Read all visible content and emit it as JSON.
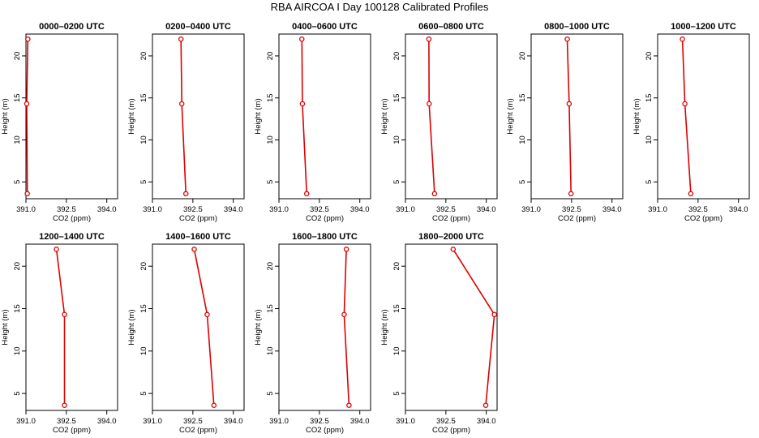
{
  "title": "RBA AIRCOA I  Day 100128  Calibrated Profiles",
  "colors": {
    "series": "#dd0000",
    "axis": "#000000",
    "background": "#ffffff"
  },
  "chart_data": [
    {
      "type": "line",
      "title": "0000–0200 UTC",
      "xlabel": "CO2 (ppm)",
      "ylabel": "Height (m)",
      "xlim": [
        391.0,
        394.4
      ],
      "ylim": [
        3.0,
        22.6
      ],
      "xticks": [
        "391.0",
        "392.5",
        "394.0"
      ],
      "yticks": [
        "5",
        "10",
        "15",
        "20"
      ],
      "x": [
        391.07,
        391.03,
        391.05
      ],
      "y": [
        22.0,
        14.3,
        3.6
      ]
    },
    {
      "type": "line",
      "title": "0200–0400 UTC",
      "xlabel": "CO2 (ppm)",
      "ylabel": "Height (m)",
      "xlim": [
        391.0,
        394.4
      ],
      "ylim": [
        3.0,
        22.6
      ],
      "xticks": [
        "391.0",
        "392.5",
        "394.0"
      ],
      "yticks": [
        "5",
        "10",
        "15",
        "20"
      ],
      "x": [
        392.06,
        392.09,
        392.24
      ],
      "y": [
        22.0,
        14.3,
        3.6
      ]
    },
    {
      "type": "line",
      "title": "0400–0600 UTC",
      "xlabel": "CO2 (ppm)",
      "ylabel": "Height (m)",
      "xlim": [
        391.0,
        394.4
      ],
      "ylim": [
        3.0,
        22.6
      ],
      "xticks": [
        "391.0",
        "392.5",
        "394.0"
      ],
      "yticks": [
        "5",
        "10",
        "15",
        "20"
      ],
      "x": [
        391.85,
        391.87,
        392.03
      ],
      "y": [
        22.0,
        14.3,
        3.6
      ]
    },
    {
      "type": "line",
      "title": "0600–0800 UTC",
      "xlabel": "CO2 (ppm)",
      "ylabel": "Height (m)",
      "xlim": [
        391.0,
        394.4
      ],
      "ylim": [
        3.0,
        22.6
      ],
      "xticks": [
        "391.0",
        "392.5",
        "394.0"
      ],
      "yticks": [
        "5",
        "10",
        "15",
        "20"
      ],
      "x": [
        391.87,
        391.88,
        392.08
      ],
      "y": [
        22.0,
        14.3,
        3.6
      ]
    },
    {
      "type": "line",
      "title": "0800–1000 UTC",
      "xlabel": "CO2 (ppm)",
      "ylabel": "Height (m)",
      "xlim": [
        391.0,
        394.4
      ],
      "ylim": [
        3.0,
        22.6
      ],
      "xticks": [
        "391.0",
        "392.5",
        "394.0"
      ],
      "yticks": [
        "5",
        "10",
        "15",
        "20"
      ],
      "x": [
        392.34,
        392.41,
        392.48
      ],
      "y": [
        22.0,
        14.3,
        3.6
      ]
    },
    {
      "type": "line",
      "title": "1000–1200 UTC",
      "xlabel": "CO2 (ppm)",
      "ylabel": "Height (m)",
      "xlim": [
        391.0,
        394.4
      ],
      "ylim": [
        3.0,
        22.6
      ],
      "xticks": [
        "391.0",
        "392.5",
        "394.0"
      ],
      "yticks": [
        "5",
        "10",
        "15",
        "20"
      ],
      "x": [
        391.92,
        392.01,
        392.23
      ],
      "y": [
        22.0,
        14.3,
        3.6
      ]
    },
    {
      "type": "line",
      "title": "1200–1400 UTC",
      "xlabel": "CO2 (ppm)",
      "ylabel": "Height (m)",
      "xlim": [
        391.0,
        394.4
      ],
      "ylim": [
        3.0,
        22.6
      ],
      "xticks": [
        "391.0",
        "392.5",
        "394.0"
      ],
      "yticks": [
        "5",
        "10",
        "15",
        "20"
      ],
      "x": [
        392.13,
        392.43,
        392.43
      ],
      "y": [
        22.0,
        14.3,
        3.6
      ]
    },
    {
      "type": "line",
      "title": "1400–1600 UTC",
      "xlabel": "CO2 (ppm)",
      "ylabel": "Height (m)",
      "xlim": [
        391.0,
        394.4
      ],
      "ylim": [
        3.0,
        22.6
      ],
      "xticks": [
        "391.0",
        "392.5",
        "394.0"
      ],
      "yticks": [
        "5",
        "10",
        "15",
        "20"
      ],
      "x": [
        392.55,
        393.03,
        393.28
      ],
      "y": [
        22.0,
        14.3,
        3.6
      ]
    },
    {
      "type": "line",
      "title": "1600–1800 UTC",
      "xlabel": "CO2 (ppm)",
      "ylabel": "Height (m)",
      "xlim": [
        391.0,
        394.4
      ],
      "ylim": [
        3.0,
        22.6
      ],
      "xticks": [
        "391.0",
        "392.5",
        "394.0"
      ],
      "yticks": [
        "5",
        "10",
        "15",
        "20"
      ],
      "x": [
        393.5,
        393.42,
        393.6
      ],
      "y": [
        22.0,
        14.3,
        3.6
      ]
    },
    {
      "type": "line",
      "title": "1800–2000 UTC",
      "xlabel": "CO2 (ppm)",
      "ylabel": "Height (m)",
      "xlim": [
        391.0,
        394.4
      ],
      "ylim": [
        3.0,
        22.6
      ],
      "xticks": [
        "391.0",
        "392.5",
        "394.0"
      ],
      "yticks": [
        "5",
        "10",
        "15",
        "20"
      ],
      "x": [
        392.77,
        394.3,
        393.98
      ],
      "y": [
        22.0,
        14.3,
        3.6
      ]
    }
  ]
}
